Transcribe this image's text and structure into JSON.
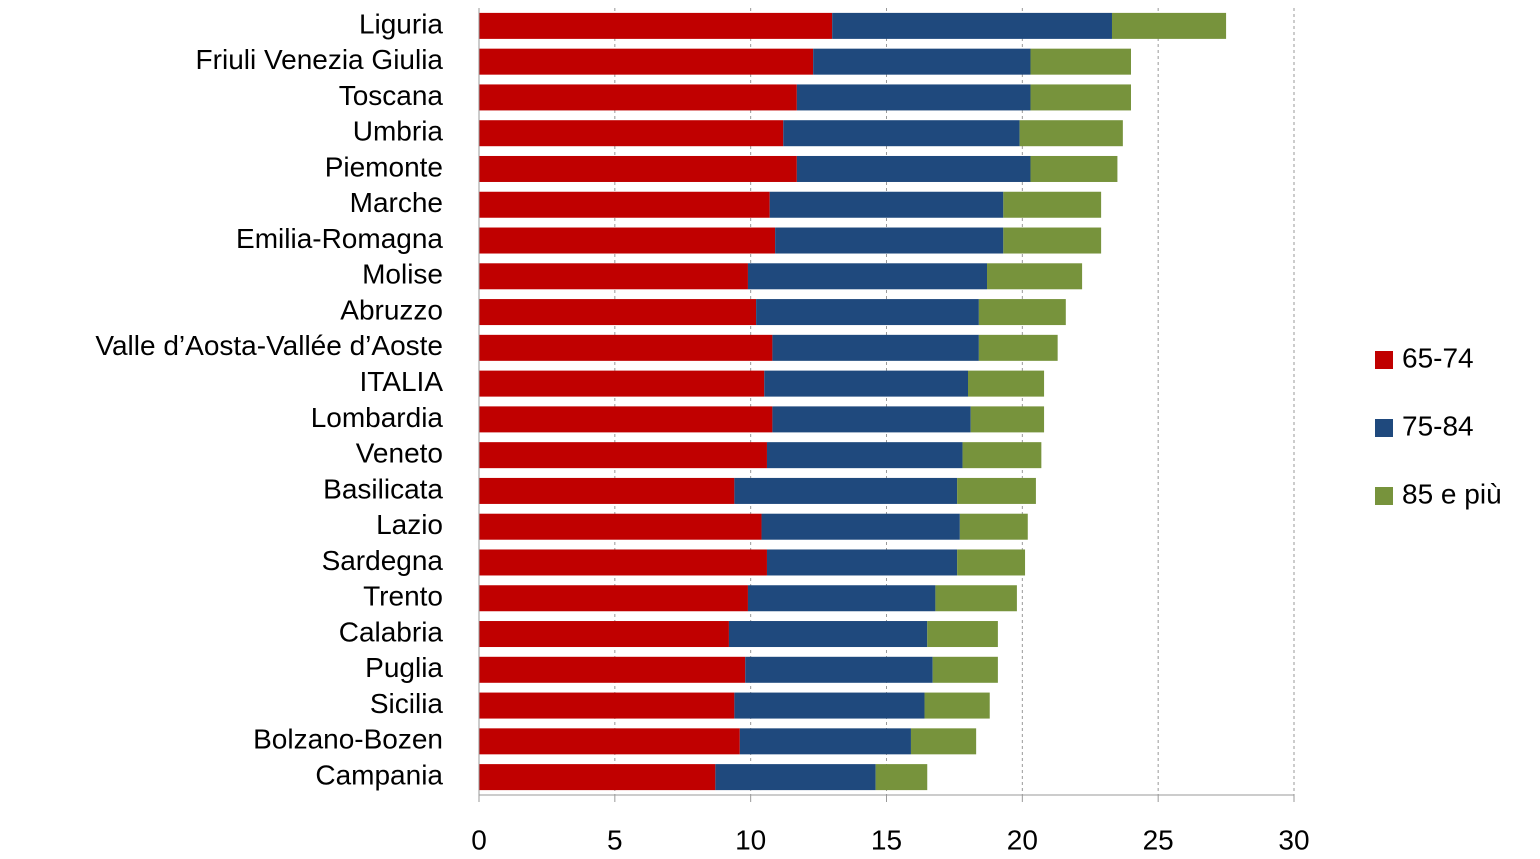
{
  "chart_data": {
    "type": "stacked-bar-horizontal",
    "categories": [
      "Liguria",
      "Friuli Venezia Giulia",
      "Toscana",
      "Umbria",
      "Piemonte",
      "Marche",
      "Emilia-Romagna",
      "Molise",
      "Abruzzo",
      "Valle d’Aosta-Vallée d’Aoste",
      "ITALIA",
      "Lombardia",
      "Veneto",
      "Basilicata",
      "Lazio",
      "Sardegna",
      "Trento",
      "Calabria",
      "Puglia",
      "Sicilia",
      "Bolzano-Bozen",
      "Campania"
    ],
    "series": [
      {
        "name": "65-74",
        "color": "#c00000",
        "values": [
          13.0,
          12.3,
          11.7,
          11.2,
          11.7,
          10.7,
          10.9,
          9.9,
          10.2,
          10.8,
          10.5,
          10.8,
          10.6,
          9.4,
          10.4,
          10.6,
          9.9,
          9.2,
          9.8,
          9.4,
          9.6,
          8.7
        ]
      },
      {
        "name": "75-84",
        "color": "#1f497d",
        "values": [
          10.3,
          8.0,
          8.6,
          8.7,
          8.6,
          8.6,
          8.4,
          8.8,
          8.2,
          7.6,
          7.5,
          7.3,
          7.2,
          8.2,
          7.3,
          7.0,
          6.9,
          7.3,
          6.9,
          7.0,
          6.3,
          5.9
        ]
      },
      {
        "name": "85 e più",
        "color": "#77933c",
        "values": [
          4.2,
          3.7,
          3.7,
          3.8,
          3.2,
          3.6,
          3.6,
          3.5,
          3.2,
          2.9,
          2.8,
          2.7,
          2.9,
          2.9,
          2.5,
          2.5,
          3.0,
          2.6,
          2.4,
          2.4,
          2.4,
          1.9
        ]
      }
    ],
    "xlim": [
      0,
      30
    ],
    "xticks": [
      0,
      5,
      10,
      15,
      20,
      25,
      30
    ],
    "grid": true,
    "legend": "right"
  }
}
